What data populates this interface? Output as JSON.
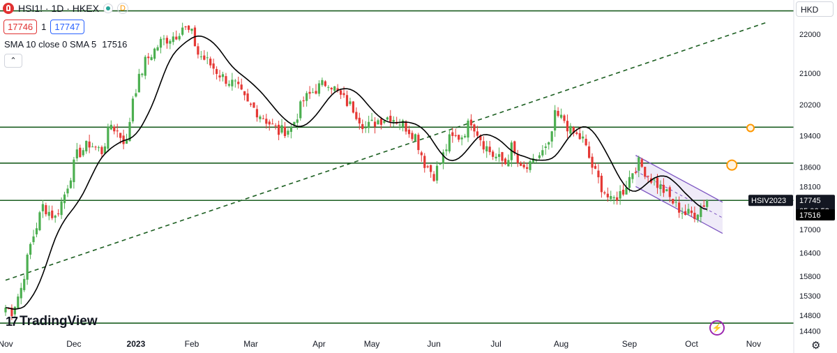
{
  "header": {
    "symbol": "HSI1! · 1D · HKEX",
    "bid": "17746",
    "spread": "1",
    "ask": "17747",
    "indicator_label": "SMA 10 close 0 SMA 5",
    "indicator_value": "17516",
    "currency": "HKD",
    "delay_badge": "D",
    "collapse_icon": "chevron-up-icon"
  },
  "branding": {
    "logo_text": "TradingView",
    "logo_mark": "17"
  },
  "icons": {
    "bottom_right": "gear-icon",
    "event": "lightning-icon"
  },
  "chart_data": {
    "type": "candlestick",
    "instrument": "HSI1!",
    "interval": "1D",
    "ylim": [
      14300,
      22700
    ],
    "y_ticks": [
      22000,
      21000,
      20200,
      19400,
      18600,
      18100,
      17000,
      16400,
      15800,
      15300,
      14800,
      14400
    ],
    "x_ticks": [
      {
        "label": "Nov",
        "idx": 0
      },
      {
        "label": "Dec",
        "idx": 22
      },
      {
        "label": "2023",
        "idx": 42
      },
      {
        "label": "Feb",
        "idx": 60
      },
      {
        "label": "Mar",
        "idx": 79
      },
      {
        "label": "Apr",
        "idx": 101
      },
      {
        "label": "May",
        "idx": 118
      },
      {
        "label": "Jun",
        "idx": 138
      },
      {
        "label": "Jul",
        "idx": 158
      },
      {
        "label": "Aug",
        "idx": 179
      },
      {
        "label": "Sep",
        "idx": 201
      },
      {
        "label": "Oct",
        "idx": 221
      },
      {
        "label": "Nov",
        "idx": 241
      }
    ],
    "anchors": [
      [
        0,
        15000
      ],
      [
        2,
        14900
      ],
      [
        5,
        15500
      ],
      [
        8,
        16600
      ],
      [
        12,
        17600
      ],
      [
        16,
        17300
      ],
      [
        19,
        17900
      ],
      [
        23,
        18900
      ],
      [
        27,
        19200
      ],
      [
        31,
        19000
      ],
      [
        34,
        19700
      ],
      [
        39,
        19200
      ],
      [
        41,
        20400
      ],
      [
        45,
        21300
      ],
      [
        50,
        21800
      ],
      [
        55,
        22000
      ],
      [
        57,
        22200
      ],
      [
        60,
        22000
      ],
      [
        62,
        21500
      ],
      [
        65,
        21300
      ],
      [
        70,
        20900
      ],
      [
        74,
        20700
      ],
      [
        78,
        20200
      ],
      [
        80,
        20100
      ],
      [
        84,
        19800
      ],
      [
        88,
        19500
      ],
      [
        92,
        19600
      ],
      [
        96,
        20300
      ],
      [
        100,
        20600
      ],
      [
        104,
        20800
      ],
      [
        108,
        20400
      ],
      [
        112,
        20100
      ],
      [
        116,
        19600
      ],
      [
        120,
        19800
      ],
      [
        124,
        19900
      ],
      [
        128,
        19700
      ],
      [
        132,
        19400
      ],
      [
        135,
        18700
      ],
      [
        138,
        18400
      ],
      [
        140,
        18700
      ],
      [
        143,
        19300
      ],
      [
        147,
        19400
      ],
      [
        150,
        19800
      ],
      [
        154,
        19200
      ],
      [
        157,
        18900
      ],
      [
        161,
        18700
      ],
      [
        163,
        19100
      ],
      [
        166,
        18500
      ],
      [
        169,
        18600
      ],
      [
        172,
        18900
      ],
      [
        175,
        19100
      ],
      [
        177,
        19900
      ],
      [
        180,
        19800
      ],
      [
        182,
        19500
      ],
      [
        186,
        19300
      ],
      [
        189,
        18600
      ],
      [
        192,
        18100
      ],
      [
        195,
        17700
      ],
      [
        199,
        18000
      ],
      [
        202,
        18500
      ],
      [
        204,
        18700
      ],
      [
        208,
        18300
      ],
      [
        212,
        18000
      ],
      [
        216,
        17600
      ],
      [
        219,
        17400
      ],
      [
        222,
        17400
      ],
      [
        226,
        17746
      ]
    ],
    "series": [
      {
        "name": "HSI1!",
        "style": "candles",
        "up_color": "#4caf50",
        "down_color": "#e53935"
      },
      {
        "name": "SMA 10 close 0 SMA 5",
        "style": "line",
        "color": "#000000",
        "last": 17516
      }
    ],
    "horizontal_levels": [
      {
        "value": 22600,
        "color": "#1b5e20"
      },
      {
        "value": 19620,
        "color": "#1b5e20"
      },
      {
        "value": 18700,
        "color": "#1b5e20"
      },
      {
        "value": 17745,
        "color": "#1b5e20",
        "label": "HSIV2023"
      },
      {
        "value": 14600,
        "color": "#1b5e20"
      }
    ],
    "trendline": {
      "from": [
        0,
        15700
      ],
      "to": [
        245,
        22300
      ],
      "style": "dashed",
      "color": "#1b5e20"
    },
    "channel": {
      "upper": [
        [
          203,
          18900
        ],
        [
          231,
          17700
        ]
      ],
      "lower": [
        [
          203,
          18100
        ],
        [
          231,
          16900
        ]
      ],
      "color": "#7e57c2"
    },
    "markers": [
      {
        "idx": 234,
        "value": 18650,
        "style": "ring",
        "color": "#ff9800"
      },
      {
        "idx": 240,
        "value": 19600,
        "style": "ring",
        "color": "#ff9800"
      }
    ],
    "price_labels": [
      {
        "value": 17745,
        "text": "17745",
        "sub": "05:06:53"
      },
      {
        "value": 17516,
        "text": "17516"
      }
    ],
    "level_label": "HSIV2023"
  }
}
